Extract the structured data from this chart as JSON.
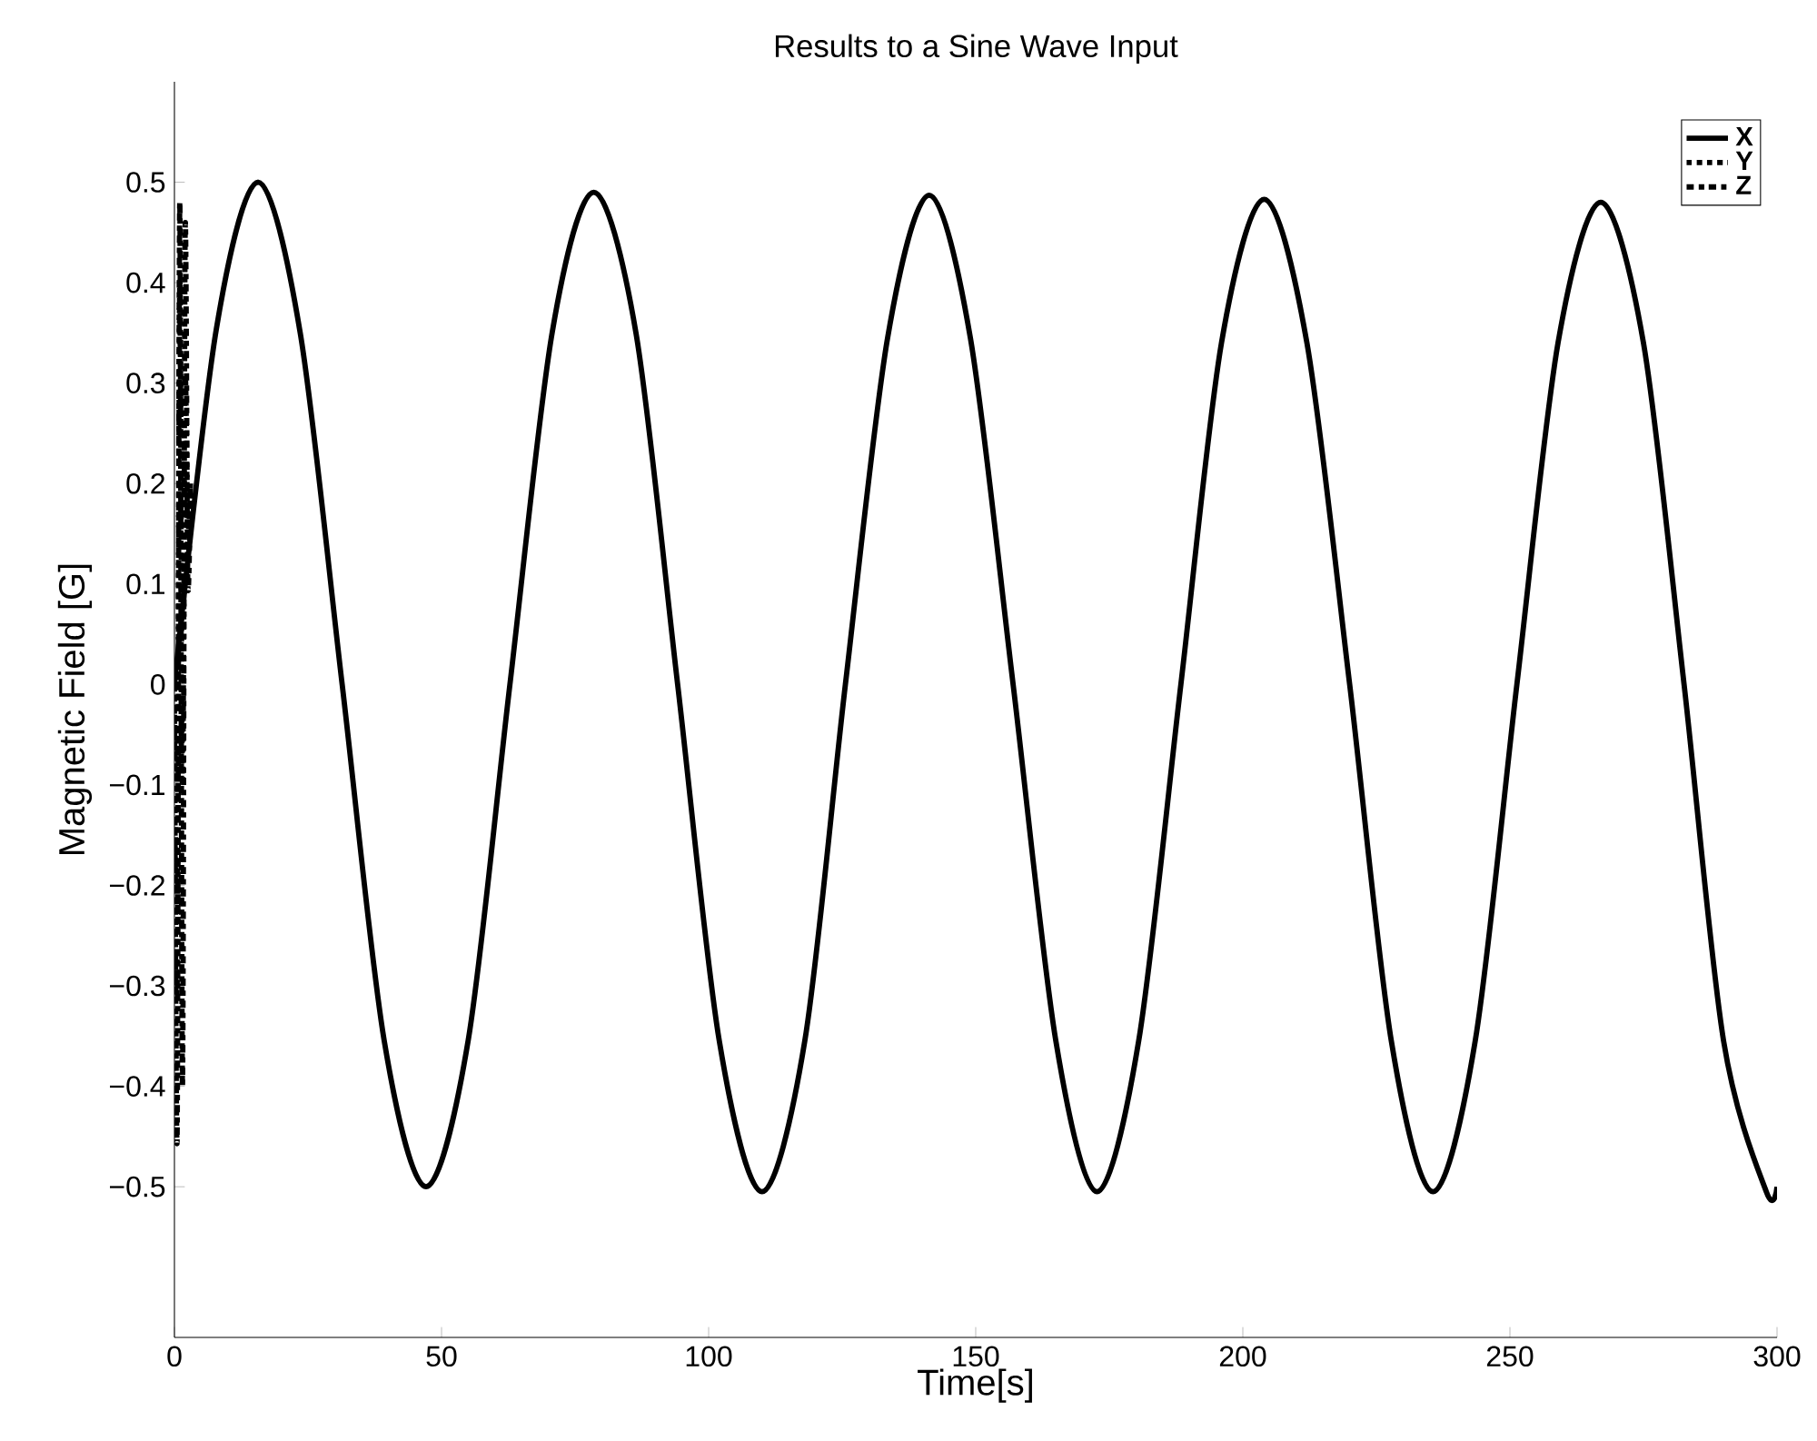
{
  "chart_data": {
    "type": "line",
    "title": "Results to a Sine Wave Input",
    "xlabel": "Time[s]",
    "ylabel": "Magnetic Field [G]",
    "xlim": [
      0,
      300
    ],
    "ylim": [
      -0.65,
      0.6
    ],
    "xticks": [
      0,
      50,
      100,
      150,
      200,
      250,
      300
    ],
    "yticks": [
      {
        "value": -0.5,
        "label": "−0.5"
      },
      {
        "value": -0.4,
        "label": "−0.4"
      },
      {
        "value": -0.3,
        "label": "−0.3"
      },
      {
        "value": -0.2,
        "label": "−0.2"
      },
      {
        "value": -0.1,
        "label": "−0.1"
      },
      0,
      0.1,
      0.2,
      0.3,
      0.4,
      0.5
    ],
    "legend": "top right",
    "grid": false,
    "marker": "none",
    "series": [
      {
        "name": "X",
        "color": "#000000",
        "line_style": "solid",
        "x": [
          0,
          7.85,
          15.7,
          23.55,
          31.4,
          39.25,
          47.1,
          55,
          62.8,
          70.7,
          78.5,
          86.4,
          94.2,
          102,
          110,
          118,
          125.6,
          133.5,
          141.3,
          149,
          157,
          165,
          172.7,
          180.5,
          188.4,
          196,
          204,
          212,
          220,
          227.8,
          235.6,
          243.5,
          251.3,
          259,
          267,
          275,
          282.6,
          290,
          298,
          300
        ],
        "values": [
          0,
          0.354,
          0.5,
          0.35,
          0,
          -0.354,
          -0.5,
          -0.354,
          0,
          0.35,
          0.49,
          0.35,
          0,
          -0.355,
          -0.505,
          -0.355,
          0,
          0.345,
          0.487,
          0.345,
          0,
          -0.355,
          -0.505,
          -0.355,
          0,
          0.34,
          0.483,
          0.34,
          0,
          -0.355,
          -0.505,
          -0.355,
          0,
          0.34,
          0.48,
          0.34,
          0,
          -0.355,
          -0.505,
          -0.5
        ]
      },
      {
        "name": "Y",
        "color": "#000000",
        "line_style": "dotted",
        "x": [
          0,
          0.5,
          1,
          1.5,
          2,
          2.5,
          3
        ],
        "values": [
          0,
          -0.3,
          0.4,
          -0.1,
          0.3,
          0.15,
          0.2
        ]
      },
      {
        "name": "Z",
        "color": "#000000",
        "line_style": "dashdot",
        "x": [
          0,
          0.5,
          1,
          1.5,
          2,
          2.5,
          3
        ],
        "values": [
          0,
          -0.45,
          0.48,
          -0.4,
          0.45,
          0.1,
          0.2
        ]
      }
    ]
  }
}
